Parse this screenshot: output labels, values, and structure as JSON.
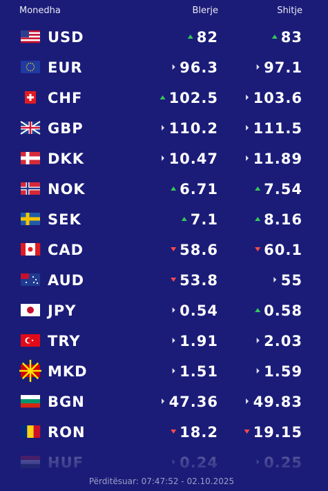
{
  "header": {
    "currency": "Monedha",
    "buy": "Blerje",
    "sell": "Shitje"
  },
  "table": {
    "rows": [
      {
        "code": "USD",
        "buy": "82",
        "sell": "83",
        "buy_trend": "up",
        "sell_trend": "up"
      },
      {
        "code": "EUR",
        "buy": "96.3",
        "sell": "97.1",
        "buy_trend": "flat",
        "sell_trend": "flat"
      },
      {
        "code": "CHF",
        "buy": "102.5",
        "sell": "103.6",
        "buy_trend": "up",
        "sell_trend": "flat"
      },
      {
        "code": "GBP",
        "buy": "110.2",
        "sell": "111.5",
        "buy_trend": "flat",
        "sell_trend": "flat"
      },
      {
        "code": "DKK",
        "buy": "10.47",
        "sell": "11.89",
        "buy_trend": "flat",
        "sell_trend": "flat"
      },
      {
        "code": "NOK",
        "buy": "6.71",
        "sell": "7.54",
        "buy_trend": "up",
        "sell_trend": "up"
      },
      {
        "code": "SEK",
        "buy": "7.1",
        "sell": "8.16",
        "buy_trend": "up",
        "sell_trend": "up"
      },
      {
        "code": "CAD",
        "buy": "58.6",
        "sell": "60.1",
        "buy_trend": "down",
        "sell_trend": "down"
      },
      {
        "code": "AUD",
        "buy": "53.8",
        "sell": "55",
        "buy_trend": "down",
        "sell_trend": "flat"
      },
      {
        "code": "JPY",
        "buy": "0.54",
        "sell": "0.58",
        "buy_trend": "flat",
        "sell_trend": "up"
      },
      {
        "code": "TRY",
        "buy": "1.91",
        "sell": "2.03",
        "buy_trend": "flat",
        "sell_trend": "flat"
      },
      {
        "code": "MKD",
        "buy": "1.51",
        "sell": "1.59",
        "buy_trend": "flat",
        "sell_trend": "flat"
      },
      {
        "code": "BGN",
        "buy": "47.36",
        "sell": "49.83",
        "buy_trend": "flat",
        "sell_trend": "flat"
      },
      {
        "code": "RON",
        "buy": "18.2",
        "sell": "19.15",
        "buy_trend": "down",
        "sell_trend": "down"
      },
      {
        "code": "HUF",
        "buy": "0.24",
        "sell": "0.25",
        "buy_trend": "flat",
        "sell_trend": "flat"
      }
    ]
  },
  "footer": {
    "updated": "Përditësuar: 07:47:52 - 02.10.2025"
  }
}
